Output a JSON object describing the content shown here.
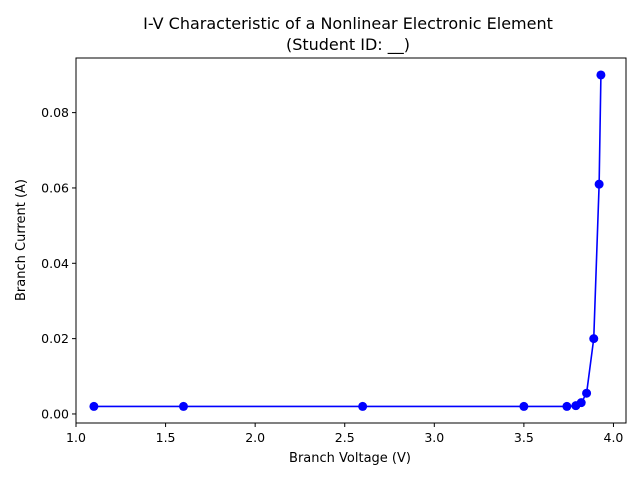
{
  "chart_data": {
    "type": "line",
    "title_line1": "I-V Characteristic of a Nonlinear Electronic Element",
    "title_line2": "(Student ID: __)",
    "xlabel": "Branch Voltage (V)",
    "ylabel": "Branch Current (A)",
    "xlim": [
      1.0,
      4.07
    ],
    "ylim": [
      -0.0024,
      0.0945
    ],
    "xticks": [
      1.0,
      1.5,
      2.0,
      2.5,
      3.0,
      3.5,
      4.0
    ],
    "xtick_labels": [
      "1.0",
      "1.5",
      "2.0",
      "2.5",
      "3.0",
      "3.5",
      "4.0"
    ],
    "yticks": [
      0.0,
      0.02,
      0.04,
      0.06,
      0.08
    ],
    "ytick_labels": [
      "0.00",
      "0.02",
      "0.04",
      "0.06",
      "0.08"
    ],
    "grid": false,
    "series": [
      {
        "color": "#0000ff",
        "marker": "circle",
        "x": [
          1.1,
          1.6,
          2.6,
          3.5,
          3.74,
          3.79,
          3.82,
          3.85,
          3.89,
          3.92,
          3.93
        ],
        "y": [
          0.002,
          0.002,
          0.002,
          0.002,
          0.002,
          0.0022,
          0.003,
          0.0055,
          0.02,
          0.061,
          0.09
        ]
      }
    ]
  }
}
